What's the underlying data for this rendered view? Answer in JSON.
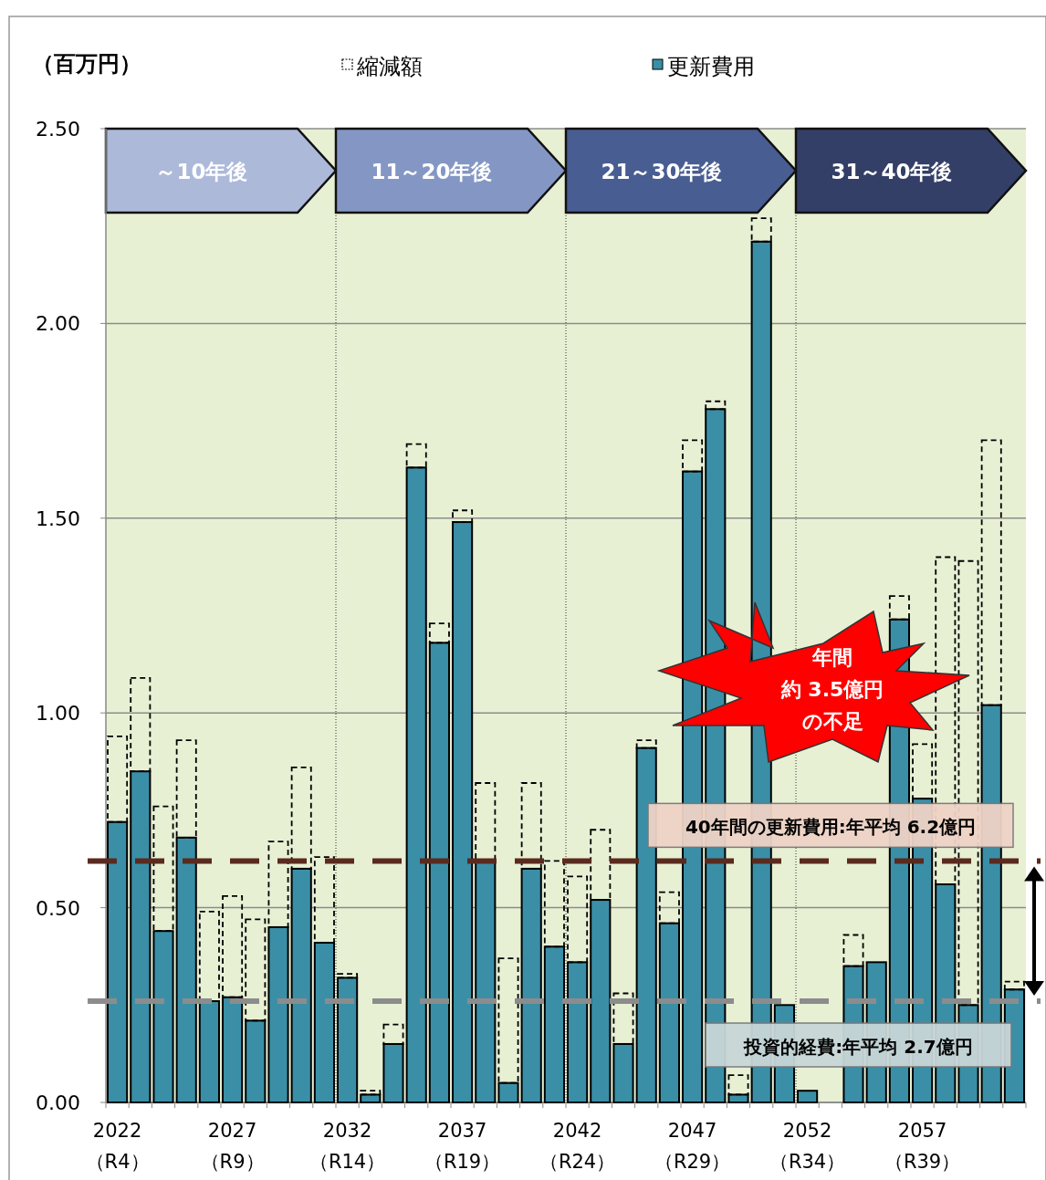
{
  "chart_data": {
    "type": "bar",
    "stacked": true,
    "ylabel": "（百万円）",
    "categories": [
      "2022\n（R4）",
      null,
      null,
      null,
      null,
      "2027\n（R9）",
      null,
      null,
      null,
      null,
      "2032\n（R14）",
      null,
      null,
      null,
      null,
      "2037\n（R19）",
      null,
      null,
      null,
      null,
      "2042\n（R24）",
      null,
      null,
      null,
      null,
      "2047\n（R29）",
      null,
      null,
      null,
      null,
      "2052\n（R34）",
      null,
      null,
      null,
      null,
      "2057\n（R39）",
      null,
      null,
      null,
      null
    ],
    "ylim": [
      0,
      2.5
    ],
    "yticks": [
      {
        "value": 0,
        "label": "0.00"
      },
      {
        "value": 0.5,
        "label": "0.50"
      },
      {
        "value": 1,
        "label": "1.00"
      },
      {
        "value": 1.5,
        "label": "1.50"
      },
      {
        "value": 2,
        "label": "2.00"
      },
      {
        "value": 2.5,
        "label": "2.50"
      }
    ],
    "grid": "y",
    "legend": "top",
    "series": [
      {
        "name": "更新費用",
        "color": "#3a8fa7",
        "values": [
          0.72,
          0.85,
          0.44,
          0.68,
          0.26,
          0.27,
          0.21,
          0.45,
          0.6,
          0.41,
          0.32,
          0.02,
          0.15,
          1.63,
          1.18,
          1.49,
          0.62,
          0.05,
          0.6,
          0.4,
          0.36,
          0.52,
          0.15,
          0.91,
          0.46,
          1.62,
          1.78,
          0.02,
          2.21,
          0.25,
          0.03,
          null,
          0.35,
          0.36,
          1.24,
          0.78,
          0.56,
          0.25,
          1.02,
          0.29
        ]
      },
      {
        "name": "縮減額",
        "color": "#000000",
        "line_style": "dashed",
        "values": [
          0.22,
          0.24,
          0.32,
          0.25,
          0.23,
          0.26,
          0.26,
          0.22,
          0.26,
          0.22,
          0.01,
          0.01,
          0.05,
          0.06,
          0.05,
          0.03,
          0.2,
          0.32,
          0.22,
          0.22,
          0.22,
          0.18,
          0.13,
          0.02,
          0.08,
          0.08,
          0.02,
          0.05,
          0.06,
          null,
          null,
          null,
          0.08,
          null,
          0.06,
          0.14,
          0.84,
          1.14,
          0.68,
          0.02
        ]
      }
    ],
    "ref_lines": [
      {
        "axis": "y",
        "value": 0.62,
        "label": "40年間の更新費用:年平均 6.2億円",
        "color": "#5a2a1e",
        "line_style": "dashed"
      },
      {
        "axis": "y",
        "value": 0.26,
        "label": "投資的経費:年平均 2.7億円",
        "color": "#8c8c8c",
        "line_style": "dashed"
      }
    ],
    "annotations": [
      "～10年後",
      "11～20年後",
      "21～30年後",
      "31～40年後",
      "年間",
      "約 3.5億円",
      "の不足"
    ]
  }
}
